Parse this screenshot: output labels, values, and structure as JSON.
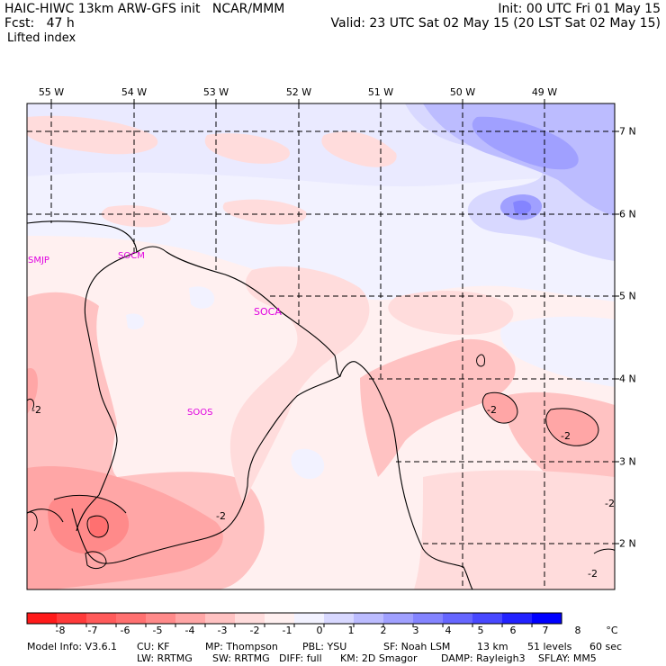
{
  "header": {
    "model_line": "HAIC-HIWC 13km ARW-GFS init   NCAR/MMM",
    "fcst_line": "Fcst:   47 h",
    "field_line": "Lifted index",
    "init_line": "Init: 00 UTC Fri 01 May 15",
    "valid_line": "Valid: 23 UTC Sat 02 May 15 (20 LST Sat 02 May 15)"
  },
  "map": {
    "longitude_labels": [
      "55 W",
      "54 W",
      "53 W",
      "52 W",
      "51 W",
      "50 W",
      "49 W"
    ],
    "latitude_labels": [
      "7 N",
      "6 N",
      "5 N",
      "4 N",
      "3 N",
      "2 N"
    ],
    "stations": [
      {
        "id": "SMJP"
      },
      {
        "id": "SOCM"
      },
      {
        "id": "SOCA"
      },
      {
        "id": "SOOS"
      }
    ],
    "contour_labels": [
      "-2",
      "-2",
      "-2",
      "-2",
      "-2",
      "-2"
    ]
  },
  "colorbar": {
    "unit": "°C",
    "tick_labels": [
      "-8",
      "-7",
      "-6",
      "-5",
      "-4",
      "-3",
      "-2",
      "-1",
      "0",
      "1",
      "2",
      "3",
      "4",
      "5",
      "6",
      "7",
      "8"
    ],
    "colors": [
      "#ff1a1a",
      "#ff3a3a",
      "#ff5a5a",
      "#ff7070",
      "#ff8a8a",
      "#ffa6a6",
      "#ffc2c2",
      "#ffdcdc",
      "#fff0f0",
      "#f2f2ff",
      "#d8d8ff",
      "#bcbcff",
      "#a0a0ff",
      "#8484ff",
      "#6666ff",
      "#4848ff",
      "#2222ff",
      "#0000ff"
    ]
  },
  "footer": {
    "model_info": "Model Info: V3.6.1",
    "cu": "CU: KF",
    "mp": "MP: Thompson",
    "pbl": "PBL: YSU",
    "sf": "SF: Noah LSM",
    "res": "13 km",
    "levels": "51 levels",
    "dt": "60 sec",
    "lw": "LW: RRTMG",
    "sw": "SW: RRTMG",
    "diff": "DIFF: full",
    "km": "KM: 2D Smagor",
    "damp": "DAMP: Rayleigh3",
    "sflay": "SFLAY: MM5"
  }
}
